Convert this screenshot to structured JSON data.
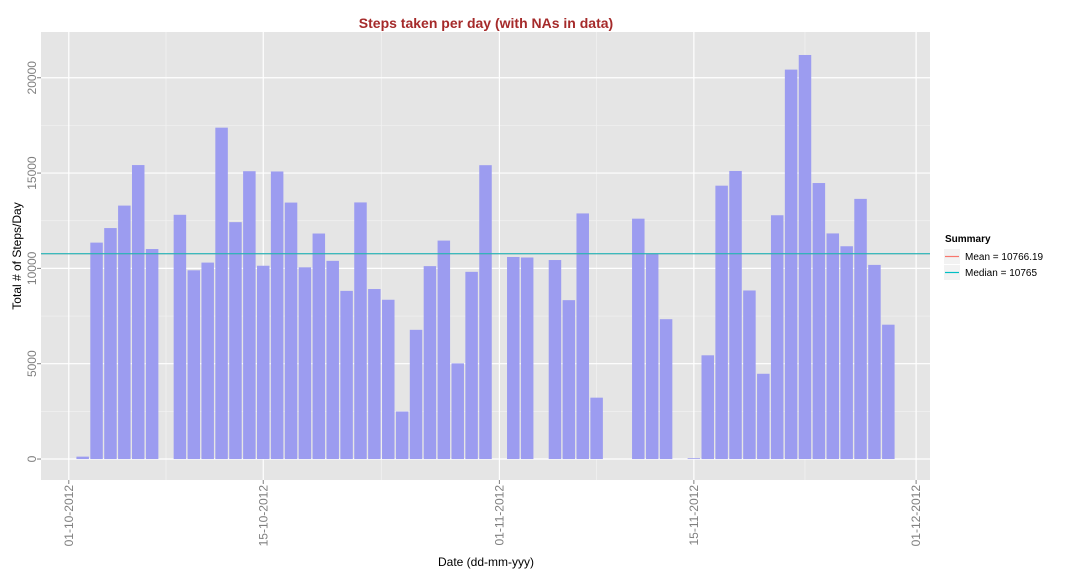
{
  "chart_data": {
    "type": "bar",
    "title": "Steps taken per day (with NAs in data)",
    "xlabel": "Date (dd-mm-yyy)",
    "ylabel": "Total # of Steps/Day",
    "x_tick_labels": [
      "01-10-2012",
      "15-10-2012",
      "01-11-2012",
      "15-11-2012",
      "01-12-2012"
    ],
    "x_tick_dates": [
      "2012-10-01",
      "2012-10-15",
      "2012-11-01",
      "2012-11-15",
      "2012-12-01"
    ],
    "y_ticks": [
      0,
      5000,
      10000,
      15000,
      20000
    ],
    "y_tick_labels": [
      "0",
      "5000",
      "10000",
      "15000",
      "20000"
    ],
    "xlim": [
      "2012-09-29",
      "2012-12-02"
    ],
    "ylim": [
      -1100,
      22400
    ],
    "grid": true,
    "legend_position": "right",
    "bar_color": "#9c9cf0",
    "dates": [
      "2012-10-01",
      "2012-10-02",
      "2012-10-03",
      "2012-10-04",
      "2012-10-05",
      "2012-10-06",
      "2012-10-07",
      "2012-10-08",
      "2012-10-09",
      "2012-10-10",
      "2012-10-11",
      "2012-10-12",
      "2012-10-13",
      "2012-10-14",
      "2012-10-15",
      "2012-10-16",
      "2012-10-17",
      "2012-10-18",
      "2012-10-19",
      "2012-10-20",
      "2012-10-21",
      "2012-10-22",
      "2012-10-23",
      "2012-10-24",
      "2012-10-25",
      "2012-10-26",
      "2012-10-27",
      "2012-10-28",
      "2012-10-29",
      "2012-10-30",
      "2012-10-31",
      "2012-11-01",
      "2012-11-02",
      "2012-11-03",
      "2012-11-04",
      "2012-11-05",
      "2012-11-06",
      "2012-11-07",
      "2012-11-08",
      "2012-11-09",
      "2012-11-10",
      "2012-11-11",
      "2012-11-12",
      "2012-11-13",
      "2012-11-14",
      "2012-11-15",
      "2012-11-16",
      "2012-11-17",
      "2012-11-18",
      "2012-11-19",
      "2012-11-20",
      "2012-11-21",
      "2012-11-22",
      "2012-11-23",
      "2012-11-24",
      "2012-11-25",
      "2012-11-26",
      "2012-11-27",
      "2012-11-28",
      "2012-11-29",
      "2012-11-30"
    ],
    "values": [
      null,
      126,
      11352,
      12116,
      13294,
      15420,
      11015,
      null,
      12811,
      9900,
      10304,
      17382,
      12426,
      15098,
      10139,
      15084,
      13452,
      10056,
      11829,
      10395,
      8821,
      13460,
      8918,
      8355,
      2492,
      6778,
      10119,
      11458,
      5018,
      9819,
      15414,
      null,
      10600,
      10571,
      null,
      10439,
      8334,
      12883,
      3219,
      null,
      null,
      12608,
      10765,
      7336,
      null,
      41,
      5441,
      14339,
      15110,
      8841,
      4472,
      12787,
      20427,
      21194,
      14478,
      11834,
      11162,
      13646,
      10183,
      7047,
      null
    ]
  },
  "legend": {
    "title": "Summary",
    "items": [
      {
        "label": "Mean =  10766.19",
        "color": "#f8766d",
        "value": 10766.19
      },
      {
        "label": "Median =  10765",
        "color": "#00bfc4",
        "value": 10765
      }
    ]
  },
  "colors": {
    "title": "#a52a2a",
    "panel_bg": "#e5e5e5",
    "grid_major": "#ffffff",
    "grid_minor": "#f2f2f2",
    "tick_text": "#7f7f7f"
  }
}
